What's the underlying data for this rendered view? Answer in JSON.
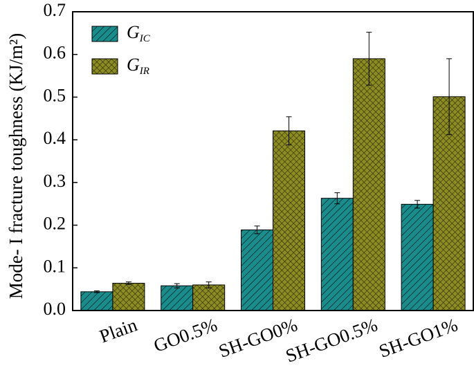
{
  "chart_data": {
    "type": "bar",
    "y_label": "Mode- I fracture toughness (KJ/m²)",
    "categories": [
      "Plain",
      "GO0.5%",
      "SH-GO0%",
      "SH-GO0.5%",
      "SH-GO1%"
    ],
    "series": [
      {
        "name": "GIC",
        "color": "#1b8c8c",
        "hatch": "diagonal",
        "values": [
          0.044,
          0.058,
          0.189,
          0.263,
          0.249
        ],
        "errors": [
          0.002,
          0.005,
          0.009,
          0.013,
          0.009
        ]
      },
      {
        "name": "GIR",
        "color": "#8c8c22",
        "hatch": "cross",
        "values": [
          0.064,
          0.06,
          0.421,
          0.59,
          0.501
        ],
        "errors": [
          0.003,
          0.007,
          0.033,
          0.062,
          0.089
        ]
      }
    ],
    "ylim": [
      0,
      0.7
    ],
    "yticks": [
      {
        "value": 0,
        "label": "0.0"
      },
      0.1,
      0.2,
      0.3,
      0.4,
      0.5,
      0.6,
      0.7
    ],
    "legend": "upper-left"
  }
}
